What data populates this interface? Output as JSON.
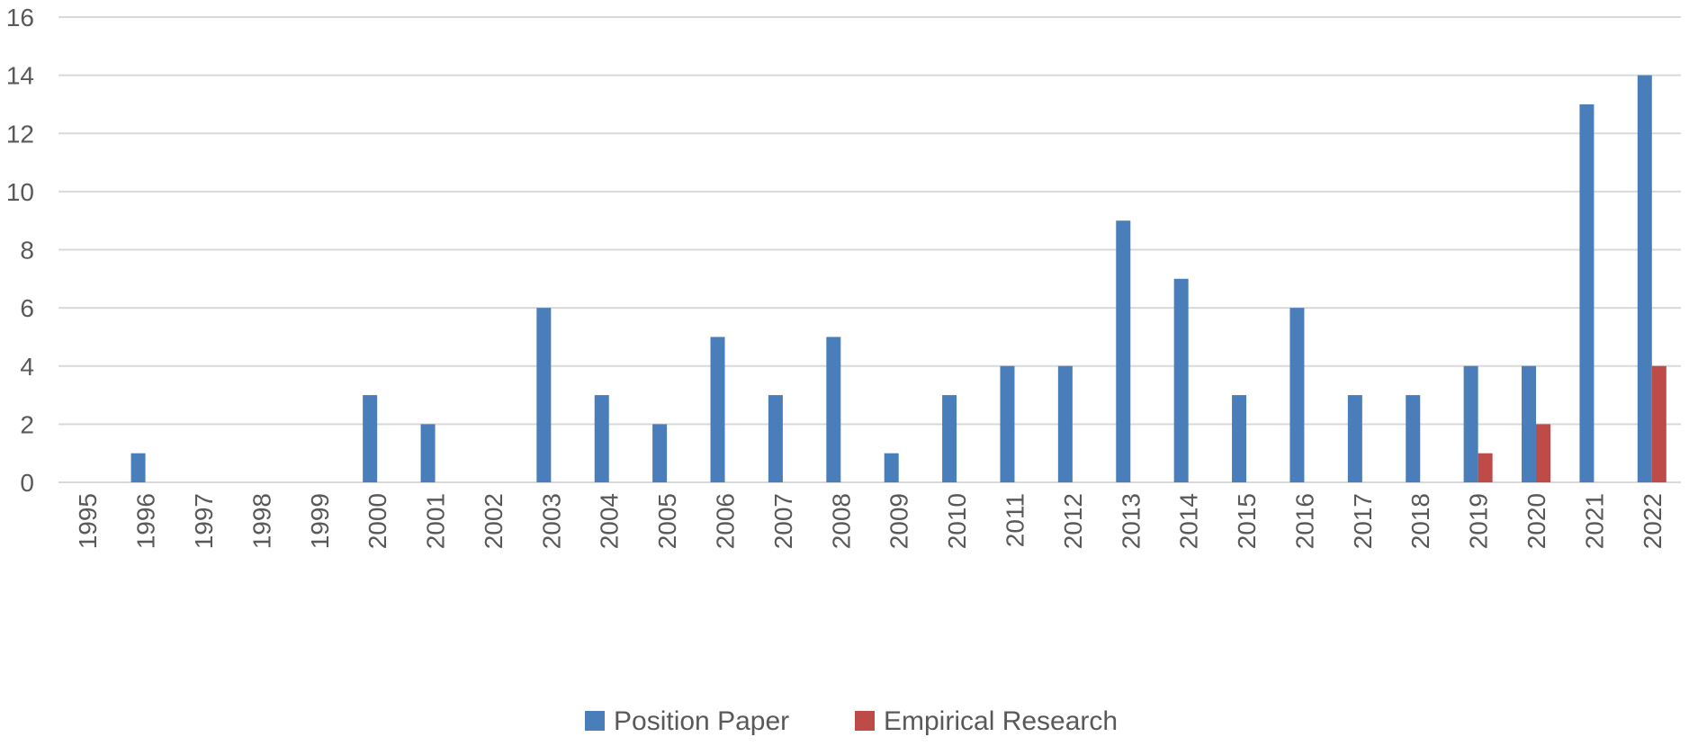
{
  "chart_data": {
    "type": "bar",
    "title": "",
    "xlabel": "",
    "ylabel": "",
    "ylim": [
      0,
      16
    ],
    "yticks": [
      0,
      2,
      4,
      6,
      8,
      10,
      12,
      14,
      16
    ],
    "grid": true,
    "legend_position": "bottom-center",
    "categories": [
      "1995",
      "1996",
      "1997",
      "1998",
      "1999",
      "2000",
      "2001",
      "2002",
      "2003",
      "2004",
      "2005",
      "2006",
      "2007",
      "2008",
      "2009",
      "2010",
      "2011",
      "2012",
      "2013",
      "2014",
      "2015",
      "2016",
      "2017",
      "2018",
      "2019",
      "2020",
      "2021",
      "2022"
    ],
    "series": [
      {
        "name": "Position Paper",
        "color": "#4a7ebb",
        "values": [
          0,
          1,
          0,
          0,
          0,
          3,
          2,
          0,
          6,
          3,
          2,
          5,
          3,
          5,
          1,
          3,
          4,
          4,
          9,
          7,
          3,
          6,
          3,
          3,
          4,
          4,
          13,
          14
        ]
      },
      {
        "name": "Empirical Research",
        "color": "#be4b48",
        "values": [
          0,
          0,
          0,
          0,
          0,
          0,
          0,
          0,
          0,
          0,
          0,
          0,
          0,
          0,
          0,
          0,
          0,
          0,
          0,
          0,
          0,
          0,
          0,
          0,
          1,
          2,
          0,
          4
        ]
      }
    ]
  }
}
